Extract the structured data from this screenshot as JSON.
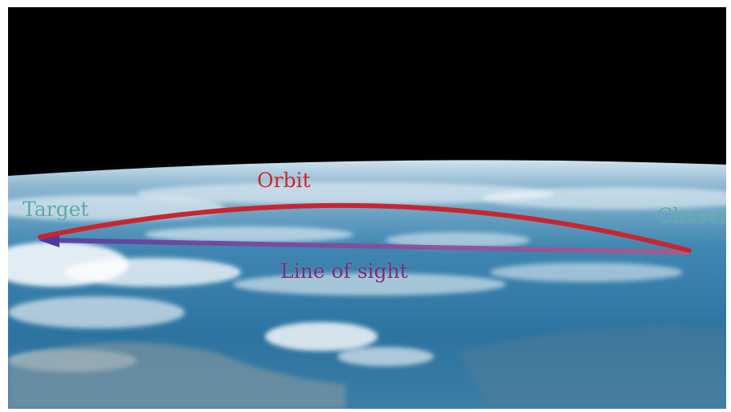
{
  "labels": {
    "orbit": "Orbit",
    "target": "Target",
    "chaser": "Chaser",
    "line_of_sight": "Line of sight"
  },
  "colors": {
    "space": "#000000",
    "orbit": "#c8262f",
    "line_of_sight": "#6b3a8c",
    "object_label": "#5aa9a1",
    "ocean": "#2a6f9a"
  }
}
